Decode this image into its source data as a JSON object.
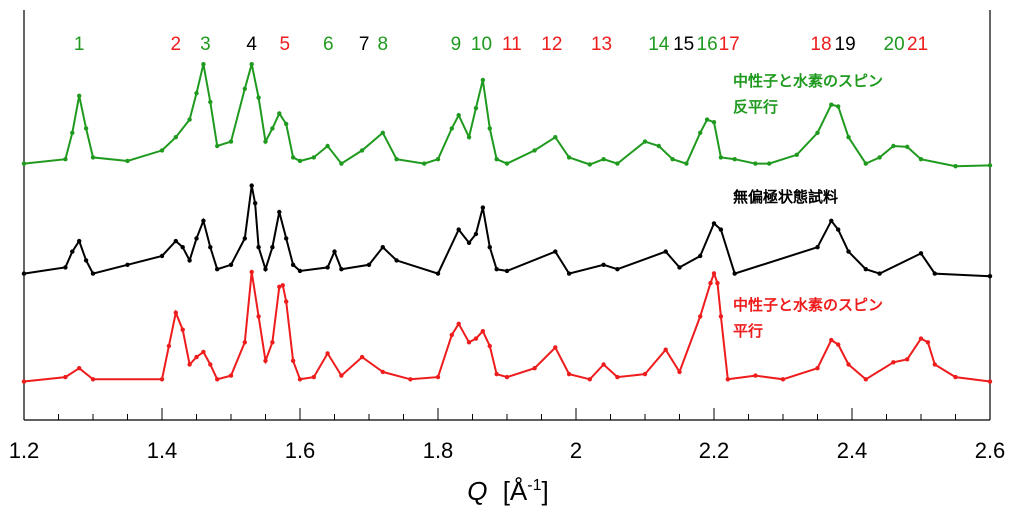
{
  "chart_data": {
    "type": "line",
    "title": "",
    "xlabel_q": "Q",
    "xlabel_unit": "[Å",
    "xlabel_exp": "-1",
    "xlabel_close": "]",
    "ylabel": "",
    "xlim": [
      1.2,
      2.6
    ],
    "x_ticks": [
      "1.2",
      "1.4",
      "1.6",
      "1.8",
      "2",
      "2.2",
      "2.4",
      "2.6"
    ],
    "colors": {
      "green": "#1f9a1f",
      "black": "#000000",
      "red": "#ee1c1c"
    },
    "peak_labels": [
      {
        "text": "1",
        "q": 1.28,
        "color": "green"
      },
      {
        "text": "2",
        "q": 1.42,
        "color": "red"
      },
      {
        "text": "3",
        "q": 1.463,
        "color": "green"
      },
      {
        "text": "4",
        "q": 1.53,
        "color": "black"
      },
      {
        "text": "5",
        "q": 1.578,
        "color": "red"
      },
      {
        "text": "6",
        "q": 1.641,
        "color": "green"
      },
      {
        "text": "7",
        "q": 1.693,
        "color": "black"
      },
      {
        "text": "8",
        "q": 1.72,
        "color": "green"
      },
      {
        "text": "9",
        "q": 1.826,
        "color": "green"
      },
      {
        "text": "10",
        "q": 1.863,
        "color": "green"
      },
      {
        "text": "11",
        "q": 1.907,
        "color": "red"
      },
      {
        "text": "12",
        "q": 1.965,
        "color": "red"
      },
      {
        "text": "13",
        "q": 2.037,
        "color": "red"
      },
      {
        "text": "14",
        "q": 2.12,
        "color": "green"
      },
      {
        "text": "15",
        "q": 2.156,
        "color": "black"
      },
      {
        "text": "16",
        "q": 2.19,
        "color": "green"
      },
      {
        "text": "17",
        "q": 2.222,
        "color": "red"
      },
      {
        "text": "18",
        "q": 2.355,
        "color": "red"
      },
      {
        "text": "19",
        "q": 2.39,
        "color": "black"
      },
      {
        "text": "20",
        "q": 2.461,
        "color": "green"
      },
      {
        "text": "21",
        "q": 2.495,
        "color": "red"
      }
    ],
    "series": [
      {
        "name": "中性子と水素のスピン反平行",
        "label_lines": [
          "中性子と水素のスピン",
          "反平行"
        ],
        "color": "green",
        "baseline": 0,
        "x": [
          1.2,
          1.26,
          1.27,
          1.28,
          1.29,
          1.3,
          1.35,
          1.4,
          1.42,
          1.44,
          1.45,
          1.46,
          1.47,
          1.48,
          1.5,
          1.52,
          1.53,
          1.54,
          1.55,
          1.56,
          1.57,
          1.58,
          1.59,
          1.6,
          1.62,
          1.64,
          1.66,
          1.69,
          1.72,
          1.74,
          1.78,
          1.8,
          1.82,
          1.83,
          1.845,
          1.855,
          1.865,
          1.875,
          1.885,
          1.9,
          1.94,
          1.97,
          1.99,
          2.02,
          2.04,
          2.06,
          2.1,
          2.12,
          2.14,
          2.16,
          2.18,
          2.19,
          2.2,
          2.21,
          2.23,
          2.26,
          2.28,
          2.32,
          2.35,
          2.37,
          2.38,
          2.395,
          2.42,
          2.44,
          2.46,
          2.48,
          2.5,
          2.55,
          2.6
        ],
        "y": [
          0.05,
          0.1,
          0.4,
          0.82,
          0.45,
          0.12,
          0.08,
          0.2,
          0.35,
          0.55,
          0.85,
          1.18,
          0.75,
          0.25,
          0.3,
          0.9,
          1.18,
          0.8,
          0.3,
          0.45,
          0.62,
          0.5,
          0.12,
          0.08,
          0.12,
          0.25,
          0.05,
          0.2,
          0.4,
          0.1,
          0.05,
          0.1,
          0.45,
          0.6,
          0.35,
          0.68,
          1.0,
          0.45,
          0.1,
          0.05,
          0.2,
          0.35,
          0.12,
          0.04,
          0.1,
          0.05,
          0.3,
          0.25,
          0.1,
          0.05,
          0.4,
          0.55,
          0.52,
          0.12,
          0.1,
          0.05,
          0.05,
          0.15,
          0.4,
          0.72,
          0.7,
          0.35,
          0.05,
          0.12,
          0.25,
          0.24,
          0.1,
          0.02,
          0.03
        ]
      },
      {
        "name": "無偏極状態試料",
        "label_lines": [
          "無偏極状態試料"
        ],
        "color": "black",
        "baseline": 0,
        "x": [
          1.2,
          1.26,
          1.27,
          1.28,
          1.29,
          1.3,
          1.35,
          1.4,
          1.42,
          1.43,
          1.44,
          1.45,
          1.46,
          1.47,
          1.48,
          1.5,
          1.52,
          1.53,
          1.535,
          1.54,
          1.55,
          1.56,
          1.57,
          1.58,
          1.59,
          1.6,
          1.64,
          1.65,
          1.66,
          1.7,
          1.72,
          1.74,
          1.8,
          1.83,
          1.845,
          1.855,
          1.865,
          1.875,
          1.885,
          1.9,
          1.97,
          1.99,
          2.04,
          2.06,
          2.13,
          2.15,
          2.18,
          2.2,
          2.21,
          2.23,
          2.35,
          2.37,
          2.38,
          2.395,
          2.42,
          2.44,
          2.5,
          2.52,
          2.6
        ],
        "y": [
          0.05,
          0.12,
          0.3,
          0.42,
          0.2,
          0.05,
          0.15,
          0.25,
          0.42,
          0.35,
          0.2,
          0.45,
          0.65,
          0.35,
          0.1,
          0.15,
          0.45,
          1.05,
          0.85,
          0.35,
          0.1,
          0.35,
          0.75,
          0.45,
          0.15,
          0.08,
          0.12,
          0.3,
          0.1,
          0.15,
          0.35,
          0.2,
          0.05,
          0.55,
          0.4,
          0.5,
          0.8,
          0.35,
          0.1,
          0.08,
          0.3,
          0.05,
          0.15,
          0.1,
          0.3,
          0.12,
          0.25,
          0.62,
          0.55,
          0.05,
          0.35,
          0.65,
          0.55,
          0.3,
          0.1,
          0.05,
          0.28,
          0.05,
          0.02
        ]
      },
      {
        "name": "中性子と水素のスピン平行",
        "label_lines": [
          "中性子と水素のスピン",
          "平行"
        ],
        "color": "red",
        "baseline": 0,
        "x": [
          1.2,
          1.26,
          1.28,
          1.3,
          1.4,
          1.41,
          1.42,
          1.43,
          1.44,
          1.45,
          1.46,
          1.47,
          1.48,
          1.5,
          1.52,
          1.53,
          1.54,
          1.55,
          1.56,
          1.57,
          1.575,
          1.58,
          1.59,
          1.6,
          1.62,
          1.64,
          1.66,
          1.69,
          1.72,
          1.76,
          1.8,
          1.82,
          1.83,
          1.845,
          1.855,
          1.865,
          1.875,
          1.885,
          1.9,
          1.94,
          1.97,
          1.99,
          2.02,
          2.04,
          2.06,
          2.1,
          2.13,
          2.15,
          2.18,
          2.195,
          2.2,
          2.205,
          2.21,
          2.22,
          2.26,
          2.3,
          2.35,
          2.37,
          2.38,
          2.395,
          2.42,
          2.46,
          2.48,
          2.5,
          2.51,
          2.52,
          2.55,
          2.6
        ],
        "y": [
          0.02,
          0.08,
          0.2,
          0.05,
          0.05,
          0.5,
          0.95,
          0.72,
          0.25,
          0.35,
          0.42,
          0.25,
          0.05,
          0.1,
          0.55,
          1.5,
          0.9,
          0.3,
          0.55,
          1.3,
          1.32,
          1.1,
          0.3,
          0.05,
          0.08,
          0.4,
          0.1,
          0.35,
          0.15,
          0.05,
          0.08,
          0.65,
          0.8,
          0.55,
          0.6,
          0.7,
          0.5,
          0.12,
          0.08,
          0.2,
          0.48,
          0.12,
          0.05,
          0.25,
          0.08,
          0.12,
          0.45,
          0.15,
          0.9,
          1.35,
          1.48,
          1.35,
          0.9,
          0.05,
          0.1,
          0.05,
          0.2,
          0.58,
          0.52,
          0.25,
          0.05,
          0.28,
          0.32,
          0.6,
          0.55,
          0.25,
          0.08,
          0.02
        ]
      }
    ]
  }
}
